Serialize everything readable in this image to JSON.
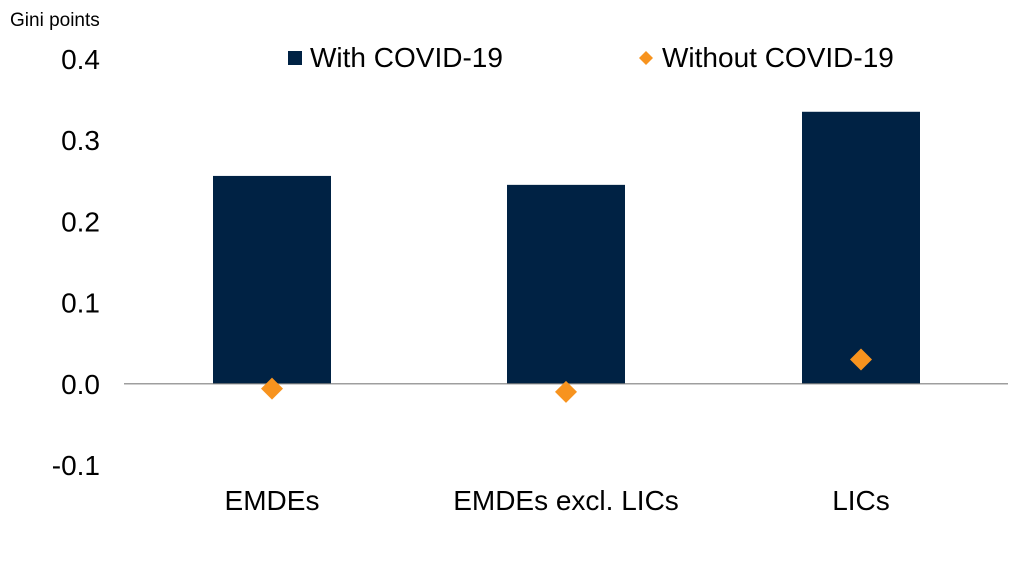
{
  "chart_data": {
    "type": "bar",
    "ylabel": "Gini points",
    "categories": [
      "EMDEs",
      "EMDEs excl. LICs",
      "LICs"
    ],
    "series": [
      {
        "name": "With COVID-19",
        "type": "bar",
        "values": [
          0.256,
          0.245,
          0.335
        ]
      },
      {
        "name": "Without COVID-19",
        "type": "scatter",
        "marker": "diamond",
        "values": [
          -0.006,
          -0.01,
          0.03
        ]
      }
    ],
    "ylim": [
      -0.1,
      0.4
    ],
    "yticks": [
      "0.4",
      "0.3",
      "0.2",
      "0.1",
      "0.0",
      "-0.1"
    ],
    "ytick_values": [
      0.4,
      0.3,
      0.2,
      0.1,
      0.0,
      -0.1
    ],
    "grid": false,
    "legend_position": "top"
  },
  "colors": {
    "bar": "#002244",
    "marker": "#F7931E",
    "axis": "#7f7f7f"
  }
}
